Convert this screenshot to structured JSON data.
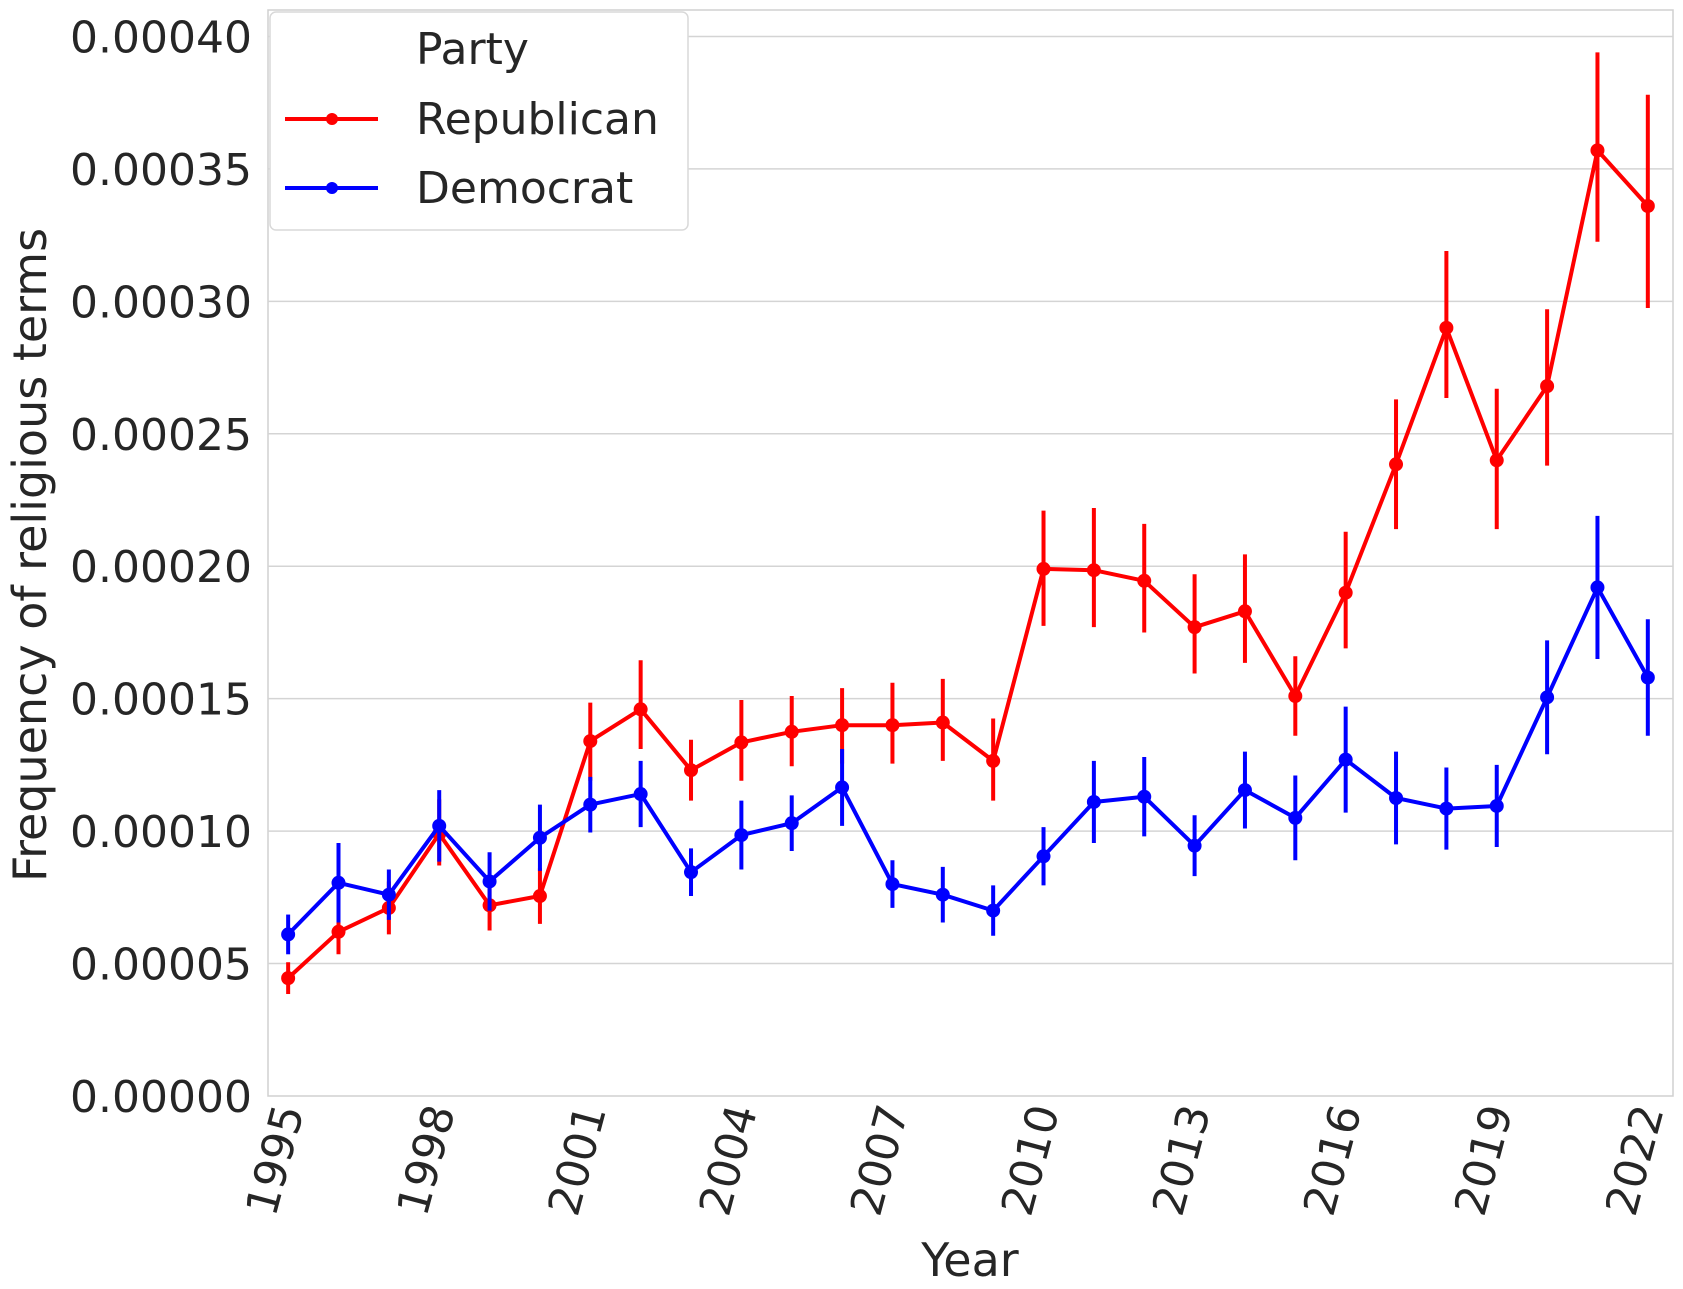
{
  "chart_data": {
    "type": "line",
    "xlabel": "Year",
    "ylabel": "Frequency of religious terms",
    "x_ticks": [
      "1995",
      "1998",
      "2001",
      "2004",
      "2007",
      "2010",
      "2013",
      "2016",
      "2019",
      "2022"
    ],
    "y_ticks": [
      "0.00000",
      "0.00005",
      "0.00010",
      "0.00015",
      "0.00020",
      "0.00025",
      "0.00030",
      "0.00035",
      "0.00040"
    ],
    "ylim": [
      0,
      0.00041
    ],
    "xlim": [
      1994.6,
      2022.5
    ],
    "grid": "horizontal",
    "legend": {
      "title": "Party",
      "placement": "top-left"
    },
    "x": [
      1995,
      1996,
      1997,
      1998,
      1999,
      2000,
      2001,
      2002,
      2003,
      2004,
      2005,
      2006,
      2007,
      2008,
      2009,
      2010,
      2011,
      2012,
      2013,
      2014,
      2015,
      2016,
      2017,
      2018,
      2019,
      2020,
      2021,
      2022
    ],
    "series": [
      {
        "name": "Republican",
        "color": "#ff0000",
        "values": [
          4.45e-05,
          6.2e-05,
          7.1e-05,
          9.9e-05,
          7.2e-05,
          7.55e-05,
          0.000134,
          0.000146,
          0.000123,
          0.0001335,
          0.0001375,
          0.00014,
          0.00014,
          0.000141,
          0.0001265,
          0.000199,
          0.0001985,
          0.0001945,
          0.000177,
          0.000183,
          0.000151,
          0.00019,
          0.0002385,
          0.00029,
          0.00024,
          0.000268,
          0.000357,
          0.000336
        ],
        "err_low": [
          3.85e-05,
          5.35e-05,
          6.1e-05,
          8.7e-05,
          6.25e-05,
          6.5e-05,
          0.000119,
          0.000131,
          0.0001115,
          0.000119,
          0.0001245,
          0.0001255,
          0.0001255,
          0.0001265,
          0.0001115,
          0.0001775,
          0.000177,
          0.000175,
          0.0001595,
          0.0001635,
          0.000136,
          0.000169,
          0.000214,
          0.0002635,
          0.000214,
          0.000238,
          0.0003225,
          0.0002975
        ],
        "err_high": [
          5.05e-05,
          7e-05,
          8.1e-05,
          0.000112,
          8.2e-05,
          8.6e-05,
          0.0001485,
          0.0001645,
          0.0001345,
          0.0001495,
          0.000151,
          0.000154,
          0.000156,
          0.0001575,
          0.0001425,
          0.000221,
          0.000222,
          0.000216,
          0.000197,
          0.0002045,
          0.000166,
          0.000213,
          0.000263,
          0.000319,
          0.000267,
          0.000297,
          0.000394,
          0.000378
        ]
      },
      {
        "name": "Democrat",
        "color": "#0000ff",
        "values": [
          6.1e-05,
          8.05e-05,
          7.6e-05,
          0.000102,
          8.1e-05,
          9.75e-05,
          0.00011,
          0.000114,
          8.45e-05,
          9.85e-05,
          0.000103,
          0.0001165,
          8e-05,
          7.6e-05,
          7e-05,
          9.05e-05,
          0.000111,
          0.000113,
          9.45e-05,
          0.0001155,
          0.000105,
          0.000127,
          0.0001125,
          0.0001085,
          0.0001095,
          0.0001505,
          0.000192,
          0.000158
        ],
        "err_low": [
          5.35e-05,
          6.55e-05,
          6.65e-05,
          8.85e-05,
          7e-05,
          8.5e-05,
          9.95e-05,
          0.0001015,
          7.55e-05,
          8.55e-05,
          9.25e-05,
          0.000102,
          7.1e-05,
          6.55e-05,
          6.05e-05,
          7.95e-05,
          9.55e-05,
          9.8e-05,
          8.3e-05,
          0.000101,
          8.9e-05,
          0.000107,
          9.5e-05,
          9.3e-05,
          9.4e-05,
          0.000129,
          0.000165,
          0.000136
        ]
      }
    ]
  }
}
